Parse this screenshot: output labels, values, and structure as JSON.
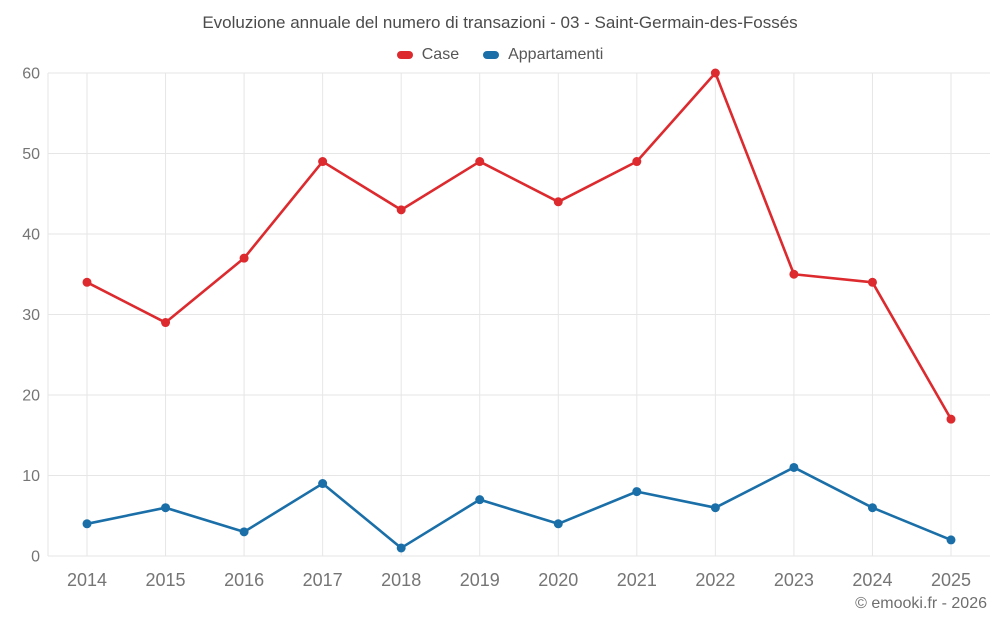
{
  "title": "Evoluzione annuale del numero di transazioni - 03 - Saint-Germain-des-Fossés",
  "footer": "© emooki.fr - 2026",
  "colors": {
    "case_red": "#dc2a2e",
    "appartamenti_blue": "#1a6fa8",
    "grid": "#e6e6e6",
    "axis_text": "#757575",
    "title_text": "#4b4b4b"
  },
  "chart_data": {
    "type": "line",
    "title": "Evoluzione annuale del numero di transazioni - 03 - Saint-Germain-des-Fossés",
    "x": [
      2014,
      2015,
      2016,
      2017,
      2018,
      2019,
      2020,
      2021,
      2022,
      2023,
      2024,
      2025
    ],
    "series": [
      {
        "name": "Case",
        "color": "#dc2a2e",
        "values": [
          34,
          29,
          37,
          49,
          43,
          49,
          44,
          49,
          60,
          35,
          34,
          17
        ]
      },
      {
        "name": "Appartamenti",
        "color": "#1a6fa8",
        "values": [
          4,
          6,
          3,
          9,
          1,
          7,
          4,
          8,
          6,
          11,
          6,
          2
        ]
      }
    ],
    "xlabel": "",
    "ylabel": "",
    "ylim": [
      0,
      60
    ],
    "yticks": [
      0,
      10,
      20,
      30,
      40,
      50,
      60
    ],
    "grid": true,
    "legend_position": "top"
  }
}
